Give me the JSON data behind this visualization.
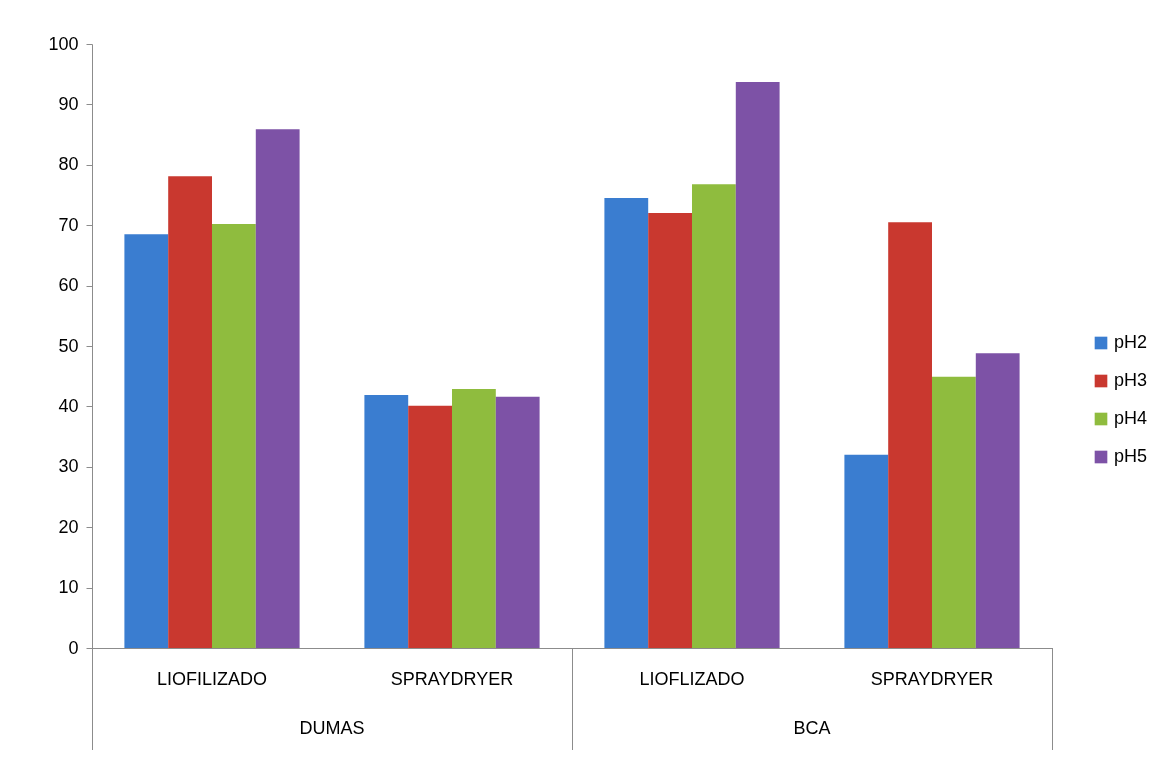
{
  "chart_data": {
    "type": "bar",
    "categories": [
      "LIOFILIZADO",
      "SPRAYDRYER",
      "LIOFLIZADO",
      "SPRAYDRYER"
    ],
    "series": [
      {
        "name": "pH2",
        "color": "#3a7dd0",
        "values": [
          68.5,
          41.9,
          74.5,
          32.0
        ]
      },
      {
        "name": "pH3",
        "color": "#c9382f",
        "values": [
          78.1,
          40.1,
          72.0,
          70.5
        ]
      },
      {
        "name": "pH4",
        "color": "#8fbc3e",
        "values": [
          70.2,
          42.9,
          76.8,
          44.9
        ]
      },
      {
        "name": "pH5",
        "color": "#7d52a6",
        "values": [
          85.9,
          41.6,
          93.7,
          48.8
        ]
      }
    ],
    "annotations": [
      "DUMAS",
      "BCA"
    ],
    "ylim": [
      0,
      100
    ],
    "yticks": [
      0,
      10,
      20,
      30,
      40,
      50,
      60,
      70,
      80,
      90,
      100
    ],
    "grid": false,
    "legend": "right"
  }
}
